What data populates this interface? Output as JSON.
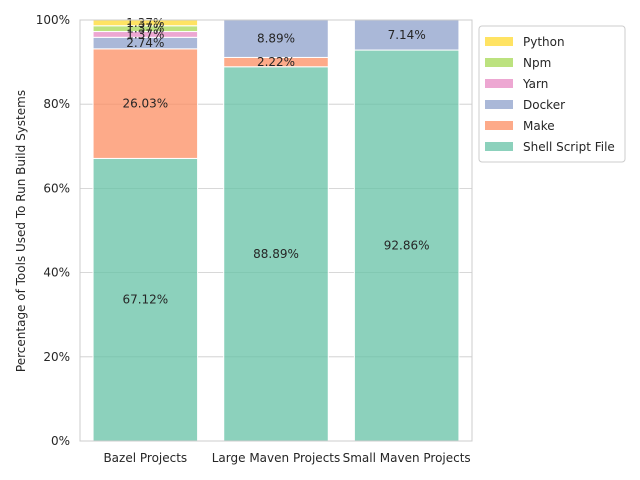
{
  "chart_data": {
    "type": "bar",
    "stacked": true,
    "categories": [
      "Bazel Projects",
      "Large Maven Projects",
      "Small Maven Projects"
    ],
    "series": [
      {
        "name": "Shell Script File",
        "color": "#66c2a5",
        "values": [
          67.12,
          88.89,
          92.86
        ],
        "labels": [
          "67.12%",
          "88.89%",
          "92.86%"
        ]
      },
      {
        "name": "Make",
        "color": "#fc8d62",
        "values": [
          26.03,
          2.22,
          0
        ],
        "labels": [
          "26.03%",
          "2.22%",
          ""
        ]
      },
      {
        "name": "Docker",
        "color": "#8da0cb",
        "values": [
          2.74,
          8.89,
          7.14
        ],
        "labels": [
          "2.74%",
          "8.89%",
          "7.14%"
        ]
      },
      {
        "name": "Yarn",
        "color": "#e78ac3",
        "values": [
          1.37,
          0,
          0
        ],
        "labels": [
          "1.37%",
          "",
          ""
        ]
      },
      {
        "name": "Npm",
        "color": "#a6d854",
        "values": [
          1.37,
          0,
          0
        ],
        "labels": [
          "1.37%",
          "",
          ""
        ]
      },
      {
        "name": "Python",
        "color": "#ffd92f",
        "values": [
          1.37,
          0,
          0
        ],
        "labels": [
          "1.37%",
          "",
          ""
        ]
      }
    ],
    "legend_order": [
      "Python",
      "Npm",
      "Yarn",
      "Docker",
      "Make",
      "Shell Script File"
    ],
    "ylabel": "Percentage of Tools Used To Run Build Systems",
    "xlabel": "",
    "ylim": [
      0,
      100
    ],
    "yticks": [
      0,
      20,
      40,
      60,
      80,
      100
    ],
    "ytick_labels": [
      "0%",
      "20%",
      "40%",
      "60%",
      "80%",
      "100%"
    ],
    "grid": "horizontal",
    "legend_position": "outside-top-right"
  }
}
